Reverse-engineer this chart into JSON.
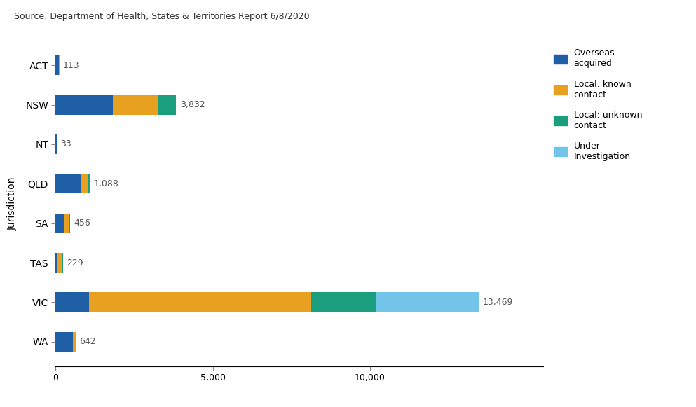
{
  "jurisdictions": [
    "WA",
    "VIC",
    "TAS",
    "SA",
    "QLD",
    "NT",
    "NSW",
    "ACT"
  ],
  "segments": {
    "overseas": [
      540,
      1050,
      45,
      290,
      820,
      33,
      1820,
      108
    ],
    "local_known": [
      90,
      7050,
      175,
      150,
      210,
      0,
      1450,
      5
    ],
    "local_unknown": [
      12,
      2100,
      9,
      16,
      58,
      0,
      562,
      0
    ],
    "under_investigation": [
      0,
      3269,
      0,
      0,
      0,
      0,
      0,
      0
    ]
  },
  "totals": [
    642,
    13469,
    229,
    456,
    1088,
    33,
    3832,
    113
  ],
  "colors": {
    "overseas": "#1F5FA6",
    "local_known": "#E8A020",
    "local_unknown": "#1A9E7E",
    "under_investigation": "#72C4E8"
  },
  "legend_labels": [
    "Overseas\nacquired",
    "Local: known\ncontact",
    "Local: unknown\ncontact",
    "Under\nInvestigation"
  ],
  "ylabel": "Jurisdiction",
  "source_text": "Source: Department of Health, States & Territories Report 6/8/2020",
  "xticks": [
    0,
    5000,
    10000
  ],
  "xticklabels": [
    "0",
    "5,000",
    "10,000"
  ],
  "xlim_max": 15500,
  "background_color": "#FFFFFF"
}
